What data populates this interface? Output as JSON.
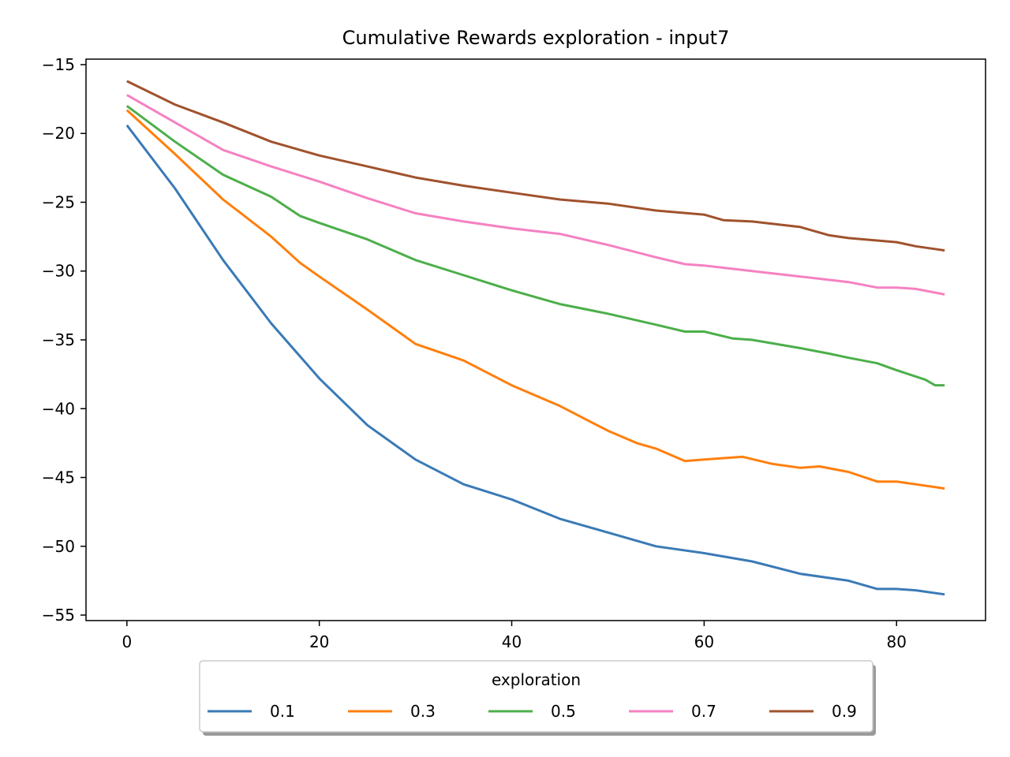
{
  "chart_data": {
    "type": "line",
    "title": "Cumulative Rewards exploration - input7",
    "xlabel": "",
    "ylabel": "",
    "xlim": [
      -4.25,
      89.25
    ],
    "ylim": [
      -55.4,
      -14.6
    ],
    "xticks": [
      0,
      20,
      40,
      60,
      80
    ],
    "yticks": [
      -15,
      -20,
      -25,
      -30,
      -35,
      -40,
      -45,
      -50,
      -55
    ],
    "xtick_labels": [
      "0",
      "20",
      "40",
      "60",
      "80"
    ],
    "ytick_labels": [
      "−15",
      "−20",
      "−25",
      "−30",
      "−35",
      "−40",
      "−45",
      "−50",
      "−55"
    ],
    "grid": false,
    "legend": {
      "title": "exploration",
      "placement": "bottom-center",
      "columns": 5
    },
    "series": [
      {
        "name": "0.1",
        "color": "#3a7ab6",
        "points": [
          [
            0,
            -19.4
          ],
          [
            5,
            -24.0
          ],
          [
            10,
            -29.2
          ],
          [
            15,
            -33.8
          ],
          [
            20,
            -37.8
          ],
          [
            25,
            -41.2
          ],
          [
            30,
            -43.7
          ],
          [
            35,
            -45.5
          ],
          [
            40,
            -46.6
          ],
          [
            45,
            -48.0
          ],
          [
            50,
            -49.0
          ],
          [
            55,
            -50.0
          ],
          [
            60,
            -50.5
          ],
          [
            65,
            -51.1
          ],
          [
            70,
            -52.0
          ],
          [
            75,
            -52.5
          ],
          [
            78,
            -53.1
          ],
          [
            80,
            -53.1
          ],
          [
            82,
            -53.2
          ],
          [
            85,
            -53.5
          ]
        ]
      },
      {
        "name": "0.3",
        "color": "#ff7f0e",
        "points": [
          [
            0,
            -18.3
          ],
          [
            5,
            -21.5
          ],
          [
            10,
            -24.8
          ],
          [
            15,
            -27.5
          ],
          [
            18,
            -29.4
          ],
          [
            20,
            -30.4
          ],
          [
            25,
            -32.8
          ],
          [
            30,
            -35.3
          ],
          [
            35,
            -36.5
          ],
          [
            40,
            -38.3
          ],
          [
            45,
            -39.8
          ],
          [
            50,
            -41.6
          ],
          [
            53,
            -42.5
          ],
          [
            55,
            -42.9
          ],
          [
            58,
            -43.8
          ],
          [
            60,
            -43.7
          ],
          [
            64,
            -43.5
          ],
          [
            67,
            -44.0
          ],
          [
            70,
            -44.3
          ],
          [
            72,
            -44.2
          ],
          [
            75,
            -44.6
          ],
          [
            78,
            -45.3
          ],
          [
            80,
            -45.3
          ],
          [
            82,
            -45.5
          ],
          [
            85,
            -45.8
          ]
        ]
      },
      {
        "name": "0.5",
        "color": "#4caf4a",
        "points": [
          [
            0,
            -18.0
          ],
          [
            5,
            -20.6
          ],
          [
            10,
            -23.0
          ],
          [
            15,
            -24.6
          ],
          [
            18,
            -26.0
          ],
          [
            20,
            -26.5
          ],
          [
            25,
            -27.7
          ],
          [
            30,
            -29.2
          ],
          [
            35,
            -30.3
          ],
          [
            40,
            -31.4
          ],
          [
            45,
            -32.4
          ],
          [
            50,
            -33.1
          ],
          [
            55,
            -33.9
          ],
          [
            58,
            -34.4
          ],
          [
            60,
            -34.4
          ],
          [
            63,
            -34.9
          ],
          [
            65,
            -35.0
          ],
          [
            70,
            -35.6
          ],
          [
            73,
            -36.0
          ],
          [
            75,
            -36.3
          ],
          [
            78,
            -36.7
          ],
          [
            80,
            -37.2
          ],
          [
            83,
            -37.9
          ],
          [
            84,
            -38.3
          ],
          [
            85,
            -38.3
          ]
        ]
      },
      {
        "name": "0.7",
        "color": "#f581c2",
        "points": [
          [
            0,
            -17.2
          ],
          [
            5,
            -19.2
          ],
          [
            10,
            -21.2
          ],
          [
            15,
            -22.4
          ],
          [
            20,
            -23.5
          ],
          [
            25,
            -24.7
          ],
          [
            30,
            -25.8
          ],
          [
            35,
            -26.4
          ],
          [
            40,
            -26.9
          ],
          [
            45,
            -27.3
          ],
          [
            50,
            -28.1
          ],
          [
            55,
            -29.0
          ],
          [
            58,
            -29.5
          ],
          [
            60,
            -29.6
          ],
          [
            65,
            -30.0
          ],
          [
            70,
            -30.4
          ],
          [
            75,
            -30.8
          ],
          [
            78,
            -31.2
          ],
          [
            80,
            -31.2
          ],
          [
            82,
            -31.3
          ],
          [
            85,
            -31.7
          ]
        ]
      },
      {
        "name": "0.9",
        "color": "#a0522d",
        "points": [
          [
            0,
            -16.2
          ],
          [
            5,
            -17.9
          ],
          [
            10,
            -19.2
          ],
          [
            15,
            -20.6
          ],
          [
            20,
            -21.6
          ],
          [
            25,
            -22.4
          ],
          [
            30,
            -23.2
          ],
          [
            35,
            -23.8
          ],
          [
            40,
            -24.3
          ],
          [
            45,
            -24.8
          ],
          [
            50,
            -25.1
          ],
          [
            55,
            -25.6
          ],
          [
            60,
            -25.9
          ],
          [
            62,
            -26.3
          ],
          [
            65,
            -26.4
          ],
          [
            70,
            -26.8
          ],
          [
            73,
            -27.4
          ],
          [
            75,
            -27.6
          ],
          [
            80,
            -27.9
          ],
          [
            82,
            -28.2
          ],
          [
            84,
            -28.4
          ],
          [
            85,
            -28.5
          ]
        ]
      }
    ]
  }
}
